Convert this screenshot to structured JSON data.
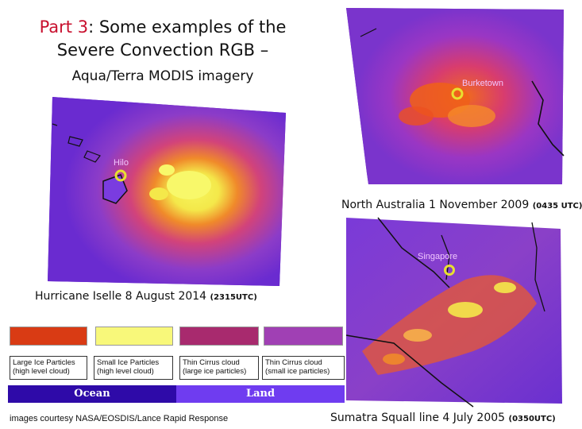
{
  "title": {
    "part": "Part 3",
    "rest_line1": ": Some examples of the",
    "line2": "Severe Convection RGB –",
    "subtitle": "Aqua/Terra MODIS imagery"
  },
  "panels": {
    "hurricane": {
      "location": "Hilo",
      "caption": "Hurricane Iselle 8 August 2014",
      "time": "(2315UTC)"
    },
    "australia": {
      "location": "Burketown",
      "caption": "North Australia 1 November 2009",
      "time": "(0435 UTC)"
    },
    "sumatra": {
      "location": "Singapore",
      "caption": "Sumatra Squall line 4 July 2005",
      "time": "(0350UTC)"
    }
  },
  "legend": {
    "swatches": [
      {
        "color": "#d93b14",
        "line1": "Large Ice Particles",
        "line2": "(high level cloud)"
      },
      {
        "color": "#f8f87a",
        "line1": "Small Ice Particles",
        "line2": "(high level cloud)"
      },
      {
        "color": "#a82a6e",
        "line1": "Thin Cirrus cloud",
        "line2": "(large ice particles)"
      },
      {
        "color": "#a040b4",
        "line1": "Thin Cirrus cloud",
        "line2": "(small ice particles)"
      }
    ],
    "ocean_label": "Ocean",
    "land_label": "Land",
    "ocean_color": "#2e0aa8",
    "land_color": "#6f3cf0"
  },
  "credit": "images courtesy NASA/EOSDIS/Lance Rapid Response"
}
